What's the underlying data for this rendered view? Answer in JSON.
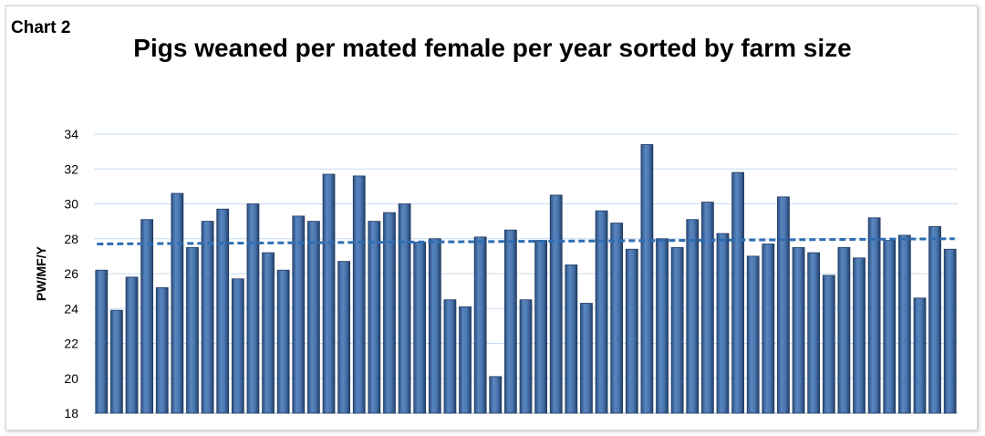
{
  "chart_data": {
    "type": "bar",
    "label": "Chart 2",
    "title": "Pigs weaned per mated female per year sorted by farm size",
    "xlabel": "",
    "ylabel": "PW/MF/Y",
    "ylim": [
      18,
      34
    ],
    "yticks": [
      18,
      20,
      22,
      24,
      26,
      28,
      30,
      32,
      34
    ],
    "grid": true,
    "legend": "none",
    "bar_color": "#3e6aa3",
    "trend_color": "#2e6db4",
    "trendline": {
      "type": "linear",
      "start": 27.7,
      "end": 28.0
    },
    "values": [
      26.2,
      23.9,
      25.8,
      29.1,
      25.2,
      30.6,
      27.5,
      29.0,
      29.7,
      25.7,
      30.0,
      27.2,
      26.2,
      29.3,
      29.0,
      31.7,
      26.7,
      31.6,
      29.0,
      29.5,
      30.0,
      27.8,
      28.0,
      24.5,
      24.1,
      28.1,
      20.1,
      28.5,
      24.5,
      27.9,
      30.5,
      26.5,
      24.3,
      29.6,
      28.9,
      27.4,
      33.4,
      28.0,
      27.5,
      29.1,
      30.1,
      28.3,
      31.8,
      27.0,
      27.7,
      30.4,
      27.5,
      27.2,
      25.9,
      27.5,
      26.9,
      29.2,
      27.9,
      28.2,
      24.6,
      28.7,
      27.4
    ]
  }
}
